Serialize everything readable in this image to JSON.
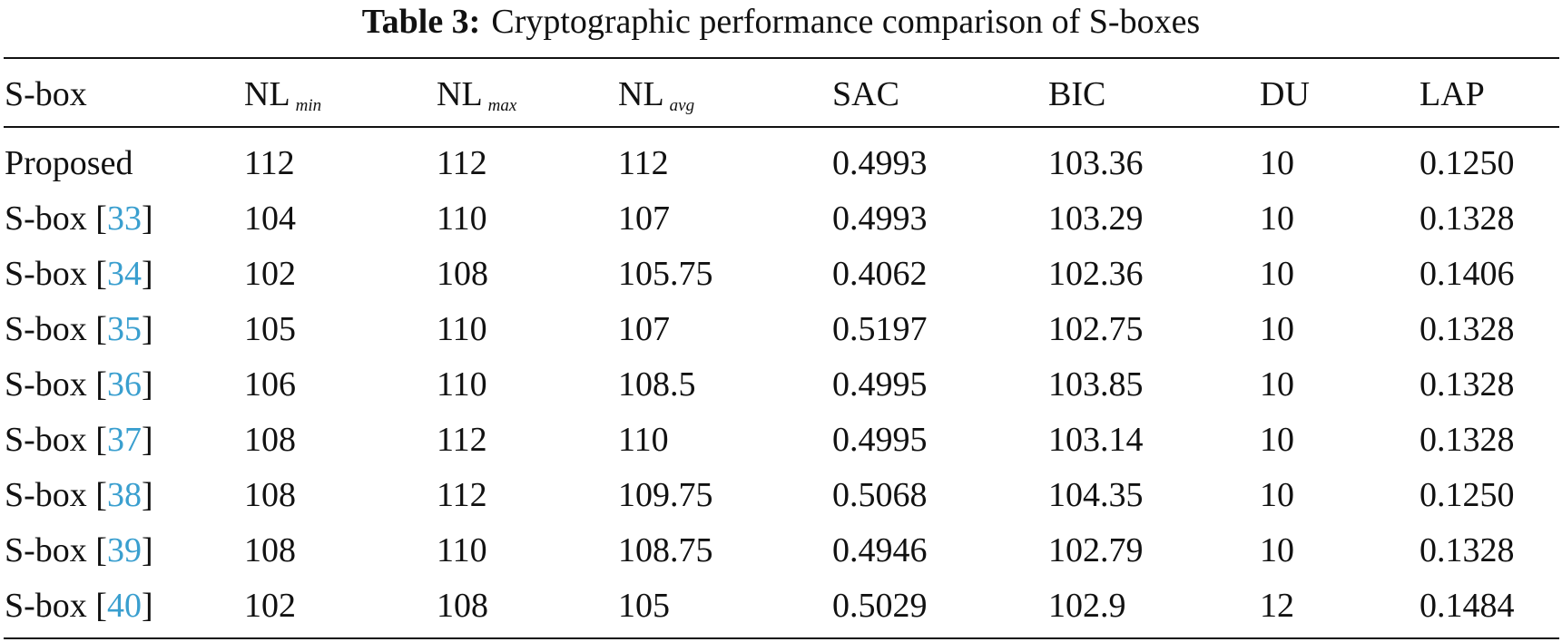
{
  "table": {
    "label": "Table 3:",
    "title": "Cryptographic performance comparison of S-boxes",
    "header": [
      {
        "main": "S-box"
      },
      {
        "main": "NL",
        "sub": "min"
      },
      {
        "main": "NL",
        "sub": "max"
      },
      {
        "main": "NL",
        "sub": "avg"
      },
      {
        "main": "SAC"
      },
      {
        "main": "BIC"
      },
      {
        "main": "DU"
      },
      {
        "main": "LAP"
      }
    ],
    "rows": [
      {
        "name": {
          "text": "Proposed"
        },
        "cells": [
          "112",
          "112",
          "112",
          "0.4993",
          "103.36",
          "10",
          "0.1250"
        ]
      },
      {
        "name": {
          "text": "S-box [",
          "ref": "33",
          "close": "]"
        },
        "cells": [
          "104",
          "110",
          "107",
          "0.4993",
          "103.29",
          "10",
          "0.1328"
        ]
      },
      {
        "name": {
          "text": "S-box [",
          "ref": "34",
          "close": "]"
        },
        "cells": [
          "102",
          "108",
          "105.75",
          "0.4062",
          "102.36",
          "10",
          "0.1406"
        ]
      },
      {
        "name": {
          "text": "S-box [",
          "ref": "35",
          "close": "]"
        },
        "cells": [
          "105",
          "110",
          "107",
          "0.5197",
          "102.75",
          "10",
          "0.1328"
        ]
      },
      {
        "name": {
          "text": "S-box [",
          "ref": "36",
          "close": "]"
        },
        "cells": [
          "106",
          "110",
          "108.5",
          "0.4995",
          "103.85",
          "10",
          "0.1328"
        ]
      },
      {
        "name": {
          "text": "S-box [",
          "ref": "37",
          "close": "]"
        },
        "cells": [
          "108",
          "112",
          "110",
          "0.4995",
          "103.14",
          "10",
          "0.1328"
        ]
      },
      {
        "name": {
          "text": "S-box [",
          "ref": "38",
          "close": "]"
        },
        "cells": [
          "108",
          "112",
          "109.75",
          "0.5068",
          "104.35",
          "10",
          "0.1250"
        ]
      },
      {
        "name": {
          "text": "S-box [",
          "ref": "39",
          "close": "]"
        },
        "cells": [
          "108",
          "110",
          "108.75",
          "0.4946",
          "102.79",
          "10",
          "0.1328"
        ]
      },
      {
        "name": {
          "text": "S-box [",
          "ref": "40",
          "close": "]"
        },
        "cells": [
          "102",
          "108",
          "105",
          "0.5029",
          "102.9",
          "12",
          "0.1484"
        ]
      }
    ]
  }
}
